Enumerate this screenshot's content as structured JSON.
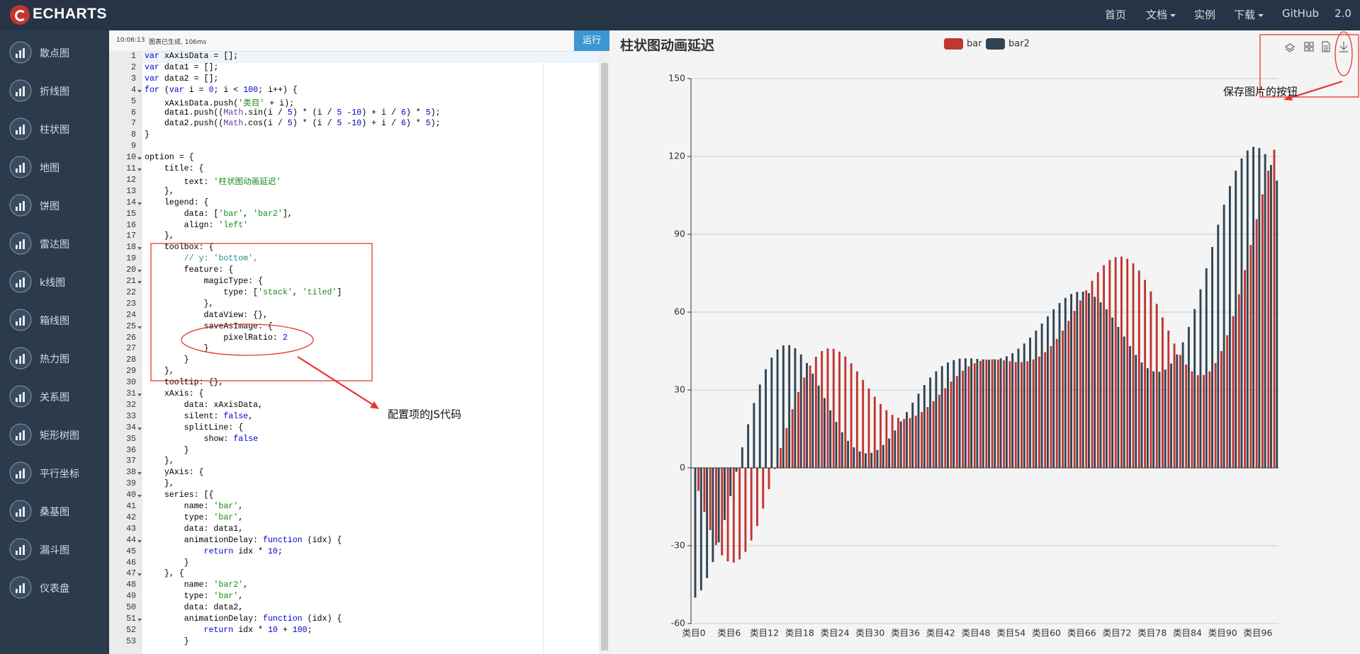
{
  "nav": {
    "logo": "ECHARTS",
    "items": [
      {
        "label": "首页"
      },
      {
        "label": "文档",
        "dropdown": true
      },
      {
        "label": "实例"
      },
      {
        "label": "下载",
        "dropdown": true
      },
      {
        "label": "GitHub"
      },
      {
        "label": "2.0"
      }
    ]
  },
  "sidebar": [
    "散点图",
    "折线图",
    "柱状图",
    "地图",
    "饼图",
    "雷达图",
    "k线图",
    "箱线图",
    "热力图",
    "关系图",
    "矩形树图",
    "平行坐标",
    "桑基图",
    "漏斗图",
    "仪表盘"
  ],
  "editor": {
    "status_time": "10:06:13",
    "status": "图表已生成, 106ms",
    "run_button": "运行",
    "lines": [
      {
        "number": 1,
        "code": "var xAxisData = [];"
      },
      {
        "number": 2,
        "code": "var data1 = [];"
      },
      {
        "number": 3,
        "code": "var data2 = [];"
      },
      {
        "number": 4,
        "code": "for (var i = 0; i < 100; i++) {",
        "fold": true
      },
      {
        "number": 5,
        "code": "    xAxisData.push('类目' + i);"
      },
      {
        "number": 6,
        "code": "    data1.push((Math.sin(i / 5) * (i / 5 -10) + i / 6) * 5);"
      },
      {
        "number": 7,
        "code": "    data2.push((Math.cos(i / 5) * (i / 5 -10) + i / 6) * 5);"
      },
      {
        "number": 8,
        "code": "}"
      },
      {
        "number": 9
      },
      {
        "number": 10,
        "code": "option = {",
        "fold": true
      },
      {
        "number": 11,
        "code": "    title: {",
        "fold": true
      },
      {
        "number": 12,
        "code": "        text: '柱状图动画延迟'"
      },
      {
        "number": 13,
        "code": "    },"
      },
      {
        "number": 14,
        "code": "    legend: {",
        "fold": true
      },
      {
        "number": 15,
        "code": "        data: ['bar', 'bar2'],"
      },
      {
        "number": 16,
        "code": "        align: 'left'"
      },
      {
        "number": 17,
        "code": "    },"
      },
      {
        "number": 18,
        "code": "    toolbox: {",
        "fold": true
      },
      {
        "number": 19,
        "code": "        // y: 'bottom',"
      },
      {
        "number": 20,
        "code": "        feature: {",
        "fold": true
      },
      {
        "number": 21,
        "code": "            magicType: {",
        "fold": true
      },
      {
        "number": 22,
        "code": "                type: ['stack', 'tiled']"
      },
      {
        "number": 23,
        "code": "            },"
      },
      {
        "number": 24,
        "code": "            dataView: {},"
      },
      {
        "number": 25,
        "code": "            saveAsImage: {",
        "fold": true
      },
      {
        "number": 26,
        "code": "                pixelRatio: 2"
      },
      {
        "number": 27,
        "code": "            }"
      },
      {
        "number": 28,
        "code": "        }"
      },
      {
        "number": 29,
        "code": "    },"
      },
      {
        "number": 30,
        "code": "    tooltip: {},"
      },
      {
        "number": 31,
        "code": "    xAxis: {",
        "fold": true
      },
      {
        "number": 32,
        "code": "        data: xAxisData,"
      },
      {
        "number": 33,
        "code": "        silent: false,"
      },
      {
        "number": 34,
        "code": "        splitLine: {",
        "fold": true
      },
      {
        "number": 35,
        "code": "            show: false"
      },
      {
        "number": 36,
        "code": "        }"
      },
      {
        "number": 37,
        "code": "    },"
      },
      {
        "number": 38,
        "code": "    yAxis: {",
        "fold": true
      },
      {
        "number": 39,
        "code": "    },"
      },
      {
        "number": 40,
        "code": "    series: [{",
        "fold": true
      },
      {
        "number": 41,
        "code": "        name: 'bar',"
      },
      {
        "number": 42,
        "code": "        type: 'bar',"
      },
      {
        "number": 43,
        "code": "        data: data1,"
      },
      {
        "number": 44,
        "code": "        animationDelay: function (idx) {",
        "fold": true
      },
      {
        "number": 45,
        "code": "            return idx * 10;"
      },
      {
        "number": 46,
        "code": "        }"
      },
      {
        "number": 47,
        "code": "    }, {",
        "fold": true
      },
      {
        "number": 48,
        "code": "        name: 'bar2',"
      },
      {
        "number": 49,
        "code": "        type: 'bar',"
      },
      {
        "number": 50,
        "code": "        data: data2,"
      },
      {
        "number": 51,
        "code": "        animationDelay: function (idx) {",
        "fold": true
      },
      {
        "number": 52,
        "code": "            return idx * 10 + 100;"
      },
      {
        "number": 53,
        "code": "        }"
      }
    ]
  },
  "annotations": [
    {
      "text": "配置项的JS代码"
    },
    {
      "text": "保存图片的按钮"
    }
  ],
  "chart_data": {
    "type": "bar",
    "title": "柱状图动画延迟",
    "categories": [
      "类目0",
      null,
      null,
      null,
      null,
      null,
      "类目6",
      null,
      null,
      null,
      null,
      null,
      "类目12",
      null,
      null,
      null,
      null,
      null,
      "类目18",
      null,
      null,
      null,
      null,
      null,
      "类目24",
      null,
      null,
      null,
      null,
      null,
      "类目30",
      null,
      null,
      null,
      null,
      null,
      "类目36",
      null,
      null,
      null,
      null,
      null,
      "类目42",
      null,
      null,
      null,
      null,
      null,
      "类目48",
      null,
      null,
      null,
      null,
      null,
      "类目54",
      null,
      null,
      null,
      null,
      null,
      "类目60",
      null,
      null,
      null,
      null,
      null,
      "类目66",
      null,
      null,
      null,
      null,
      null,
      "类目72",
      null,
      null,
      null,
      null,
      null,
      "类目78",
      null,
      null,
      null,
      null,
      null,
      "类目84",
      null,
      null,
      null,
      null,
      null,
      "类目90",
      null,
      null,
      null,
      null,
      null,
      "类目96",
      null,
      null,
      null
    ],
    "series": [
      {
        "name": "bar",
        "color": "#c23531",
        "values": [
          0,
          -8.9,
          -17.0,
          -24.0,
          -29.7,
          -33.7,
          -36.0,
          -36.5,
          -35.3,
          -32.4,
          -28.0,
          -22.4,
          -15.7,
          -8.2,
          -0.4,
          7.6,
          15.3,
          22.6,
          29.2,
          34.8,
          39.4,
          42.8,
          45.0,
          46.0,
          45.9,
          44.8,
          42.9,
          40.3,
          37.2,
          33.9,
          30.6,
          27.4,
          24.6,
          22.2,
          20.4,
          19.3,
          18.9,
          19.2,
          20.1,
          21.5,
          23.4,
          25.7,
          28.2,
          30.7,
          33.2,
          35.4,
          37.4,
          39.1,
          40.3,
          41.2,
          41.7,
          41.8,
          41.7,
          41.4,
          41.1,
          40.8,
          40.8,
          41.1,
          41.8,
          42.9,
          44.6,
          46.9,
          49.7,
          52.9,
          56.6,
          60.5,
          64.5,
          68.4,
          72.1,
          75.4,
          78.1,
          80.1,
          81.2,
          81.4,
          80.6,
          78.8,
          76.0,
          72.4,
          68.0,
          63.2,
          58.0,
          52.9,
          47.9,
          43.5,
          39.8,
          37.2,
          35.7,
          35.8,
          37.2,
          40.4,
          45.0,
          51.1,
          58.5,
          66.9,
          76.2,
          85.9,
          95.8,
          105.4,
          114.5,
          122.6
        ]
      },
      {
        "name": "bar2",
        "color": "#2f4554",
        "values": [
          -50,
          -47.2,
          -42.5,
          -36.3,
          -28.7,
          -20.1,
          -10.9,
          -1.5,
          7.9,
          16.8,
          25.0,
          32.1,
          38.0,
          42.5,
          45.6,
          47.2,
          47.3,
          46.1,
          43.7,
          40.4,
          36.3,
          31.7,
          26.9,
          22.2,
          17.7,
          13.7,
          10.4,
          7.9,
          6.3,
          5.6,
          5.8,
          6.9,
          8.8,
          11.3,
          14.4,
          17.9,
          21.5,
          25.1,
          28.6,
          31.9,
          34.8,
          37.2,
          39.2,
          40.6,
          41.5,
          42.1,
          42.2,
          42.2,
          42.0,
          41.8,
          41.7,
          41.8,
          42.2,
          43.0,
          44.2,
          45.9,
          47.9,
          50.2,
          52.9,
          55.6,
          58.4,
          61.1,
          63.5,
          65.5,
          67.0,
          67.8,
          67.9,
          67.3,
          65.9,
          63.8,
          61.1,
          57.9,
          54.3,
          50.6,
          46.9,
          43.5,
          40.6,
          38.4,
          37.2,
          37.0,
          37.9,
          40.2,
          43.7,
          48.4,
          54.3,
          61.2,
          68.8,
          76.9,
          85.1,
          93.7,
          101.4,
          108.6,
          114.5,
          119.2,
          122.3,
          123.7,
          123.2,
          120.9,
          116.7,
          110.7
        ]
      }
    ],
    "ylim": [
      -60,
      150
    ],
    "yticks": [
      -60,
      -30,
      0,
      30,
      60,
      90,
      120,
      150
    ],
    "grid": true,
    "legend": "top"
  }
}
